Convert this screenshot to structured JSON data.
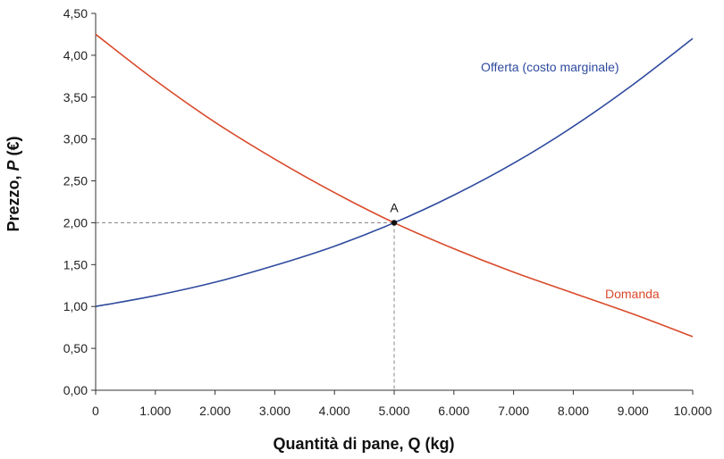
{
  "chart_data": {
    "type": "line",
    "title": "",
    "xlabel": "Quantità di pane, Q (kg)",
    "ylabel_prefix": "Prezzo, ",
    "ylabel_var": "P",
    "ylabel_suffix": " (€)",
    "xlim": [
      0,
      10000
    ],
    "ylim": [
      0,
      4.5
    ],
    "x_ticks": [
      0,
      1000,
      2000,
      3000,
      4000,
      5000,
      6000,
      7000,
      8000,
      9000,
      10000
    ],
    "x_tick_labels": [
      "0",
      "1.000",
      "2.000",
      "3.000",
      "4.000",
      "5.000",
      "6.000",
      "7.000",
      "8.000",
      "9.000",
      "10.000"
    ],
    "y_ticks": [
      0,
      0.5,
      1,
      1.5,
      2,
      2.5,
      3,
      3.5,
      4,
      4.5
    ],
    "y_tick_labels": [
      "0,00",
      "0,50",
      "1,00",
      "1,50",
      "2,00",
      "2,50",
      "3,00",
      "3,50",
      "4,00",
      "4,50"
    ],
    "grid": false,
    "series": [
      {
        "name": "Offerta (costo marginale)",
        "color": "#2e4a9e",
        "x": [
          0,
          1000,
          2000,
          3000,
          4000,
          5000,
          6000,
          7000,
          8000,
          9000,
          10000
        ],
        "y": [
          1.0,
          1.13,
          1.29,
          1.49,
          1.72,
          2.0,
          2.33,
          2.71,
          3.15,
          3.65,
          4.2
        ]
      },
      {
        "name": "Domanda",
        "color": "#d94a2b",
        "x": [
          0,
          1000,
          2000,
          3000,
          4000,
          5000,
          6000,
          7000,
          8000,
          9000,
          10000
        ],
        "y": [
          4.25,
          3.7,
          3.2,
          2.76,
          2.36,
          2.0,
          1.69,
          1.41,
          1.16,
          0.91,
          0.64
        ]
      }
    ],
    "annotations": [
      {
        "label": "A",
        "x": 5000,
        "y": 2.0,
        "dashed_guides": true
      }
    ]
  }
}
